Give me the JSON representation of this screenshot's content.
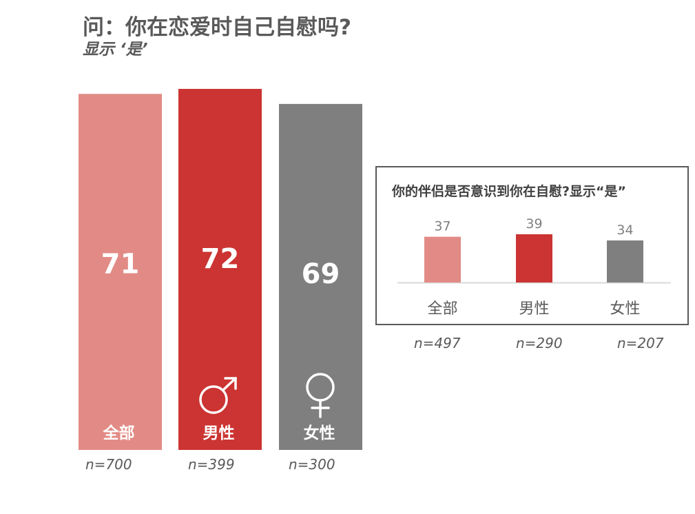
{
  "title": "问：你在恋爱时自己自慰吗?",
  "subtitle": "显示 ‘是’",
  "colors": {
    "all": "#e28b86",
    "male": "#cb3432",
    "female": "#7f7f7f",
    "axis": "#d9d9d9",
    "text": "#595959"
  },
  "chart_data": [
    {
      "type": "bar",
      "title": "问：你在恋爱时自己自慰吗?",
      "subtitle": "显示 ‘是’",
      "categories": [
        "全部",
        "男性",
        "女性"
      ],
      "values": [
        71,
        72,
        69
      ],
      "sample_sizes": [
        "n=700",
        "n=399",
        "n=300"
      ],
      "icons": [
        "",
        "male-symbol-icon",
        "female-symbol-icon"
      ],
      "ylim": [
        0,
        72
      ]
    },
    {
      "type": "bar",
      "title": "你的伴侣是否意识到你在自慰?显示“是”",
      "categories": [
        "全部",
        "男性",
        "女性"
      ],
      "values": [
        37,
        39,
        34
      ],
      "sample_sizes": [
        "n=497",
        "n=290",
        "n=207"
      ],
      "ylim": [
        0,
        39
      ]
    }
  ]
}
